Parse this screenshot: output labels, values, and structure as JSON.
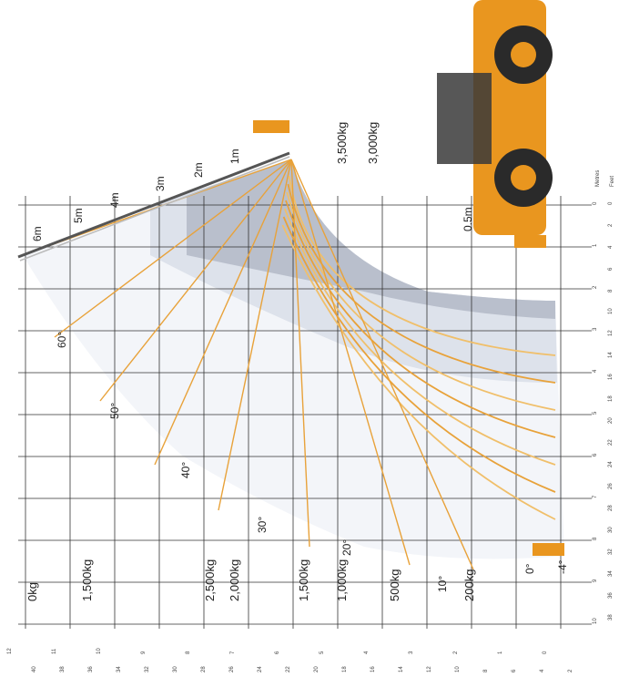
{
  "load_zones": [
    {
      "label": "0kg",
      "color": "#ffffff"
    },
    {
      "label": "1,500kg",
      "color": "#f7f8fb"
    },
    {
      "label": "2,500kg",
      "color": "#eceff5"
    },
    {
      "label": "2,000kg",
      "color": "#e2e6ef"
    },
    {
      "label": "1,500kg",
      "color": "#d7dce8"
    },
    {
      "label": "1,000kg",
      "color": "#e4e8f0"
    },
    {
      "label": "500kg",
      "color": "#eef1f6"
    },
    {
      "label": "200kg",
      "color": "#f6f7fa"
    },
    {
      "label": "3,500kg",
      "color": "#b9bfcc"
    },
    {
      "label": "3,000kg",
      "color": "#c8cdd8"
    }
  ],
  "extension_labels": [
    "1m",
    "2m",
    "3m",
    "4m",
    "5m",
    "6m"
  ],
  "angle_labels": [
    "60°",
    "50°",
    "40°",
    "30°",
    "20°",
    "10°",
    "0°",
    "-4°"
  ],
  "offset_label": "0.5m",
  "scales": {
    "left_unit_metres": "Metres",
    "left_unit_feet": "Feet",
    "metre_ticks": [
      "0",
      "1",
      "2",
      "3",
      "4",
      "5",
      "6",
      "7",
      "8",
      "9",
      "10"
    ],
    "feet_ticks": [
      "0",
      "2",
      "4",
      "6",
      "8",
      "10",
      "12",
      "14",
      "16",
      "18",
      "20",
      "22",
      "24",
      "26",
      "28",
      "30",
      "32",
      "34",
      "36",
      "38"
    ],
    "height_metre_ticks": [
      "0",
      "1",
      "2",
      "3",
      "4",
      "5",
      "6",
      "7",
      "8",
      "9",
      "10",
      "11",
      "12"
    ],
    "height_feet_ticks": [
      "2",
      "4",
      "6",
      "8",
      "10",
      "12",
      "14",
      "16",
      "18",
      "20",
      "22",
      "24",
      "26",
      "28",
      "30",
      "32",
      "34",
      "36",
      "38",
      "40"
    ]
  },
  "colors": {
    "curve": "#e8a23a",
    "curve_light": "#f0bf6a",
    "grid": "#222222",
    "machine": "#e9961f",
    "tyre": "#2a2a2a"
  }
}
